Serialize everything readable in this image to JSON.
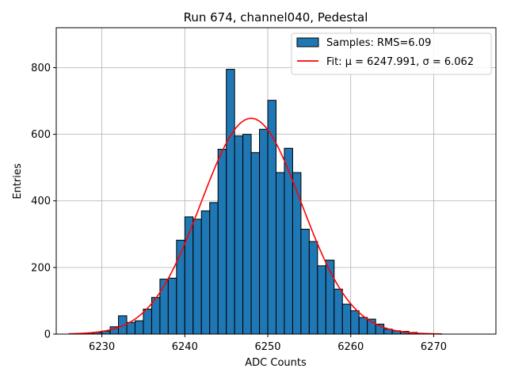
{
  "chart_data": {
    "type": "bar",
    "title": "Run 674, channel040, Pedestal",
    "xlabel": "ADC Counts",
    "ylabel": "Entries",
    "xlim": [
      6224.5,
      6277.5
    ],
    "ylim": [
      0,
      920
    ],
    "xticks": [
      6230,
      6240,
      6250,
      6260,
      6270
    ],
    "yticks": [
      0,
      200,
      400,
      600,
      800
    ],
    "grid": true,
    "legend_position": "top-right",
    "colors": {
      "bar_fill": "#1f77b4",
      "bar_edge": "#000000",
      "fit_line": "#ff0000",
      "grid": "#b0b0b0"
    },
    "histogram": {
      "name": "Samples: RMS=6.09",
      "bin_width": 1,
      "bin_left_edges": [
        6227,
        6228,
        6229,
        6230,
        6231,
        6232,
        6233,
        6234,
        6235,
        6236,
        6237,
        6238,
        6239,
        6240,
        6241,
        6242,
        6243,
        6244,
        6245,
        6246,
        6247,
        6248,
        6249,
        6250,
        6251,
        6252,
        6253,
        6254,
        6255,
        6256,
        6257,
        6258,
        6259,
        6260,
        6261,
        6262,
        6263,
        6264,
        6265,
        6266,
        6267,
        6268,
        6269,
        6270
      ],
      "values": [
        2,
        3,
        5,
        9,
        22,
        55,
        35,
        40,
        75,
        110,
        165,
        168,
        282,
        352,
        345,
        370,
        395,
        555,
        795,
        595,
        600,
        545,
        615,
        702,
        485,
        558,
        485,
        315,
        278,
        205,
        222,
        135,
        90,
        70,
        50,
        45,
        30,
        15,
        10,
        8,
        5,
        2,
        1,
        0
      ]
    },
    "fit": {
      "name": "Fit: μ = 6247.991, σ = 6.062",
      "mu": 6247.991,
      "sigma": 6.062,
      "peak": 648,
      "x_range": [
        6226,
        6271
      ]
    }
  }
}
